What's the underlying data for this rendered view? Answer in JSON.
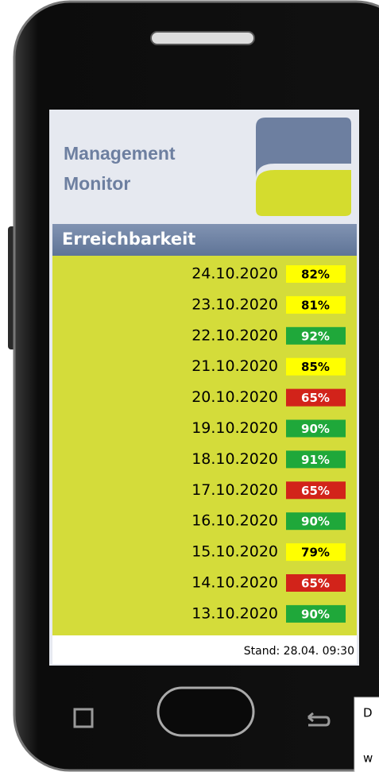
{
  "app": {
    "title_lines": [
      "Management",
      "Monitor"
    ],
    "section_title": "Erreichbarkeit",
    "rows": [
      {
        "date": "24.10.2020",
        "percent": "82%",
        "color": "#ffff00"
      },
      {
        "date": "23.10.2020",
        "percent": "81%",
        "color": "#ffff00"
      },
      {
        "date": "22.10.2020",
        "percent": "92%",
        "color": "#1fa83a"
      },
      {
        "date": "21.10.2020",
        "percent": "85%",
        "color": "#ffff00"
      },
      {
        "date": "20.10.2020",
        "percent": "65%",
        "color": "#d2231a"
      },
      {
        "date": "19.10.2020",
        "percent": "90%",
        "color": "#1fa83a"
      },
      {
        "date": "18.10.2020",
        "percent": "91%",
        "color": "#1fa83a"
      },
      {
        "date": "17.10.2020",
        "percent": "65%",
        "color": "#d2231a"
      },
      {
        "date": "16.10.2020",
        "percent": "90%",
        "color": "#1fa83a"
      },
      {
        "date": "15.10.2020",
        "percent": "79%",
        "color": "#ffff00"
      },
      {
        "date": "14.10.2020",
        "percent": "65%",
        "color": "#d2231a"
      },
      {
        "date": "13.10.2020",
        "percent": "90%",
        "color": "#1fa83a"
      }
    ],
    "footer": "Stand: 28.04. 09:30"
  },
  "overlay": {
    "lines": [
      "D",
      "w"
    ]
  }
}
